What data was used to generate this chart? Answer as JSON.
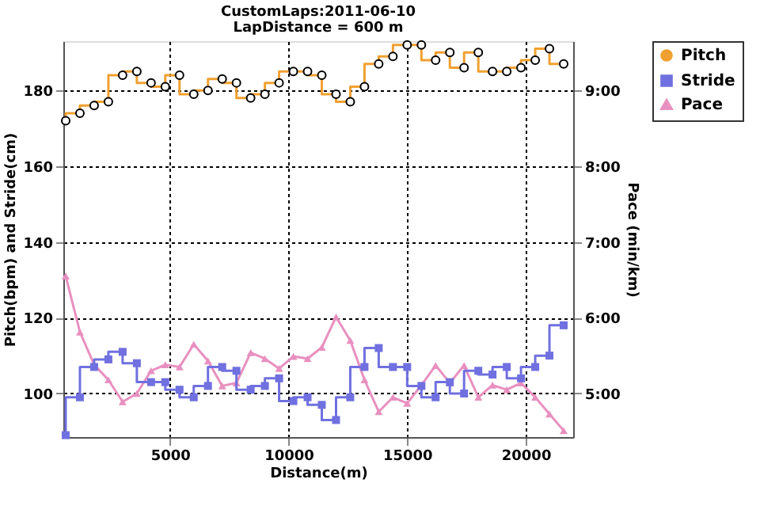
{
  "chart_data": {
    "type": "step",
    "title": "CustomLaps:2011-06-10",
    "subtitle": "LapDistance = 600 m",
    "xlabel": "Distance(m)",
    "ylabel": "Pitch(bpm) and Stride(cm)",
    "y2label": "Pace (min/km)",
    "x": [
      600,
      1200,
      1800,
      2400,
      3000,
      3600,
      4200,
      4800,
      5400,
      6000,
      6600,
      7200,
      7800,
      8400,
      9000,
      9600,
      10200,
      10800,
      11400,
      12000,
      12600,
      13200,
      13800,
      14400,
      15000,
      15600,
      16200,
      16800,
      17400,
      18000,
      18600,
      19200,
      19800,
      20400,
      21000,
      21600
    ],
    "series": [
      {
        "name": "Pitch",
        "marker": "circle",
        "color": "#f0a030",
        "values": [
          172,
          174,
          176,
          177,
          184,
          185,
          182,
          181,
          184,
          179,
          180,
          183,
          182,
          178,
          179,
          182,
          185,
          185,
          184,
          179,
          177,
          181,
          187,
          189,
          192,
          192,
          188,
          190,
          186,
          190,
          185,
          185,
          186,
          188,
          191,
          187
        ]
      },
      {
        "name": "Stride",
        "marker": "square",
        "color": "#7070e0",
        "values": [
          89,
          99,
          107,
          109,
          111,
          108,
          103,
          103,
          101,
          99,
          102,
          107,
          106,
          101,
          102,
          104,
          98,
          99,
          97,
          93,
          99,
          107,
          112,
          107,
          107,
          102,
          99,
          103,
          100,
          106,
          105,
          107,
          104,
          107,
          110,
          118
        ]
      },
      {
        "name": "Pace",
        "type": "line",
        "marker": "triangle",
        "color": "#e890c0",
        "axis": "y2",
        "values": [
          6.55,
          5.81,
          5.38,
          5.18,
          4.89,
          5.0,
          5.3,
          5.38,
          5.35,
          5.65,
          5.43,
          5.1,
          5.14,
          5.54,
          5.46,
          5.33,
          5.49,
          5.46,
          5.61,
          6.01,
          5.7,
          5.18,
          4.76,
          4.95,
          4.87,
          5.11,
          5.37,
          5.14,
          5.37,
          4.95,
          5.11,
          5.05,
          5.14,
          4.95,
          4.73,
          4.51
        ]
      }
    ],
    "xlim": [
      500,
      22000
    ],
    "xticks": [
      5000,
      10000,
      15000,
      20000
    ],
    "ylim": [
      88.5,
      193
    ],
    "yticks": [
      100,
      120,
      140,
      160,
      180
    ],
    "y2lim": [
      4.425,
      9.65
    ],
    "y2ticks": [
      {
        "value": 5,
        "label": "5:00"
      },
      {
        "value": 6,
        "label": "6:00"
      },
      {
        "value": 7,
        "label": "7:00"
      },
      {
        "value": 8,
        "label": "8:00"
      },
      {
        "value": 9,
        "label": "9:00"
      }
    ],
    "grid": true,
    "legend": "top right"
  }
}
